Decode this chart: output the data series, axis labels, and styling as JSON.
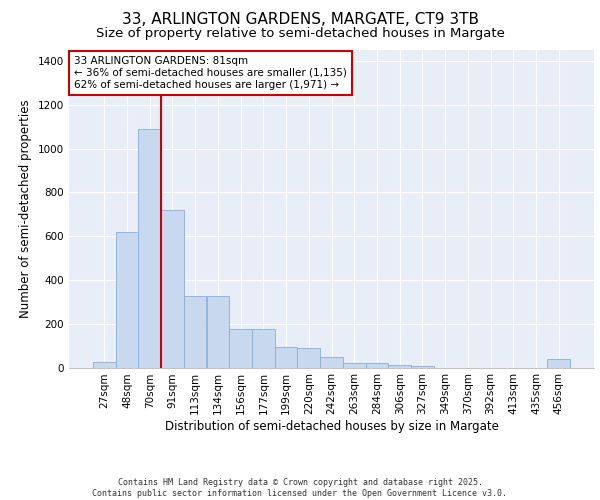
{
  "title_line1": "33, ARLINGTON GARDENS, MARGATE, CT9 3TB",
  "title_line2": "Size of property relative to semi-detached houses in Margate",
  "xlabel": "Distribution of semi-detached houses by size in Margate",
  "ylabel": "Number of semi-detached properties",
  "categories": [
    "27sqm",
    "48sqm",
    "70sqm",
    "91sqm",
    "113sqm",
    "134sqm",
    "156sqm",
    "177sqm",
    "199sqm",
    "220sqm",
    "242sqm",
    "263sqm",
    "284sqm",
    "306sqm",
    "327sqm",
    "349sqm",
    "370sqm",
    "392sqm",
    "413sqm",
    "435sqm",
    "456sqm"
  ],
  "values": [
    25,
    620,
    1090,
    720,
    325,
    325,
    175,
    175,
    95,
    90,
    50,
    20,
    20,
    10,
    8,
    0,
    0,
    0,
    0,
    0,
    40
  ],
  "bar_color": "#c8d9ef",
  "bar_edge_color": "#8aadd4",
  "vline_position": 2.5,
  "vline_color": "#cc0000",
  "annotation_text": "33 ARLINGTON GARDENS: 81sqm\n← 36% of semi-detached houses are smaller (1,135)\n62% of semi-detached houses are larger (1,971) →",
  "annotation_box_color": "#cc0000",
  "ylim": [
    0,
    1450
  ],
  "yticks": [
    0,
    200,
    400,
    600,
    800,
    1000,
    1200,
    1400
  ],
  "background_color": "#e8eef8",
  "footer_line1": "Contains HM Land Registry data © Crown copyright and database right 2025.",
  "footer_line2": "Contains public sector information licensed under the Open Government Licence v3.0.",
  "title_fontsize": 11,
  "subtitle_fontsize": 9.5,
  "tick_fontsize": 7.5,
  "label_fontsize": 8.5,
  "annotation_fontsize": 7.5,
  "footer_fontsize": 6.0
}
